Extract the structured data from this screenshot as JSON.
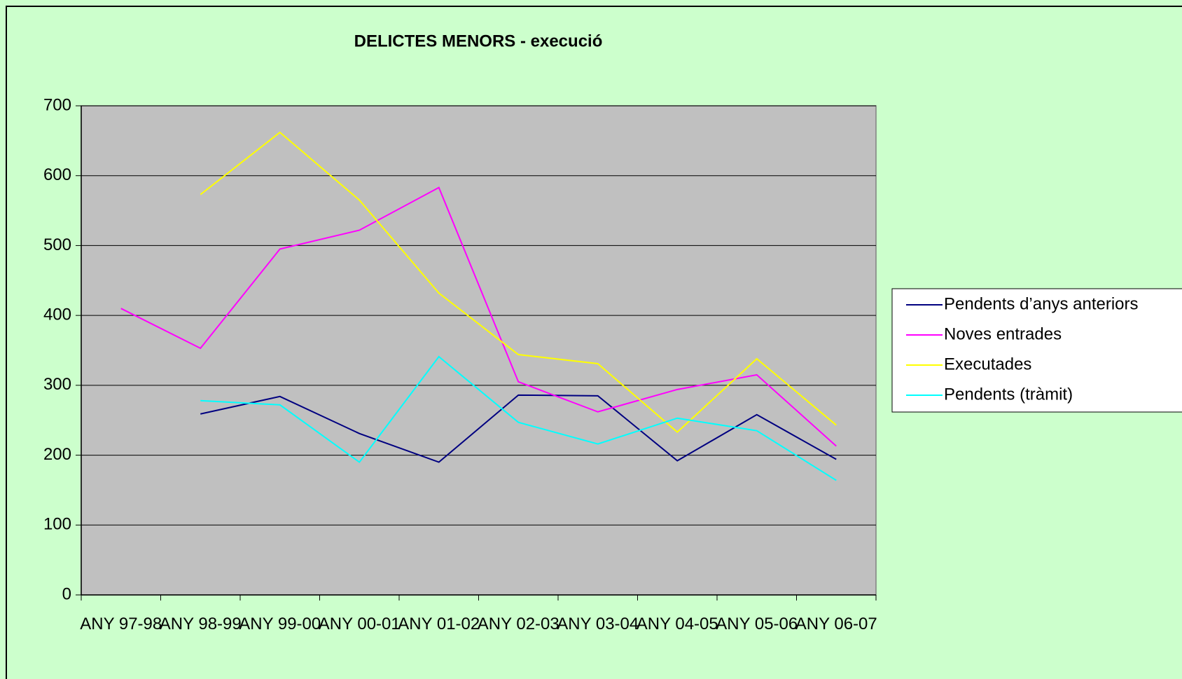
{
  "chart_data": {
    "type": "line",
    "title": "DELICTES MENORS - execució",
    "categories": [
      "ANY 97-98",
      "ANY 98-99",
      "ANY 99-00",
      "ANY 00-01",
      "ANY 01-02",
      "ANY 02-03",
      "ANY 03-04",
      "ANY 04-05",
      "ANY 05-06",
      "ANY 06-07"
    ],
    "series": [
      {
        "name": "Pendents d’anys anteriors",
        "color": "#000080",
        "values": [
          null,
          259,
          284,
          231,
          190,
          286,
          285,
          192,
          258,
          194
        ]
      },
      {
        "name": "Noves entrades",
        "color": "#ff00ff",
        "values": [
          410,
          353,
          495,
          522,
          583,
          305,
          262,
          294,
          315,
          213
        ]
      },
      {
        "name": "Executades",
        "color": "#ffff00",
        "values": [
          null,
          573,
          662,
          565,
          432,
          344,
          331,
          233,
          338,
          243
        ]
      },
      {
        "name": "Pendents (tràmit)",
        "color": "#00ffff",
        "values": [
          null,
          278,
          272,
          190,
          341,
          247,
          216,
          253,
          235,
          164
        ]
      }
    ],
    "ylim": [
      0,
      700
    ],
    "yticks": [
      0,
      100,
      200,
      300,
      400,
      500,
      600,
      700
    ],
    "grid": true,
    "legend": "right"
  }
}
